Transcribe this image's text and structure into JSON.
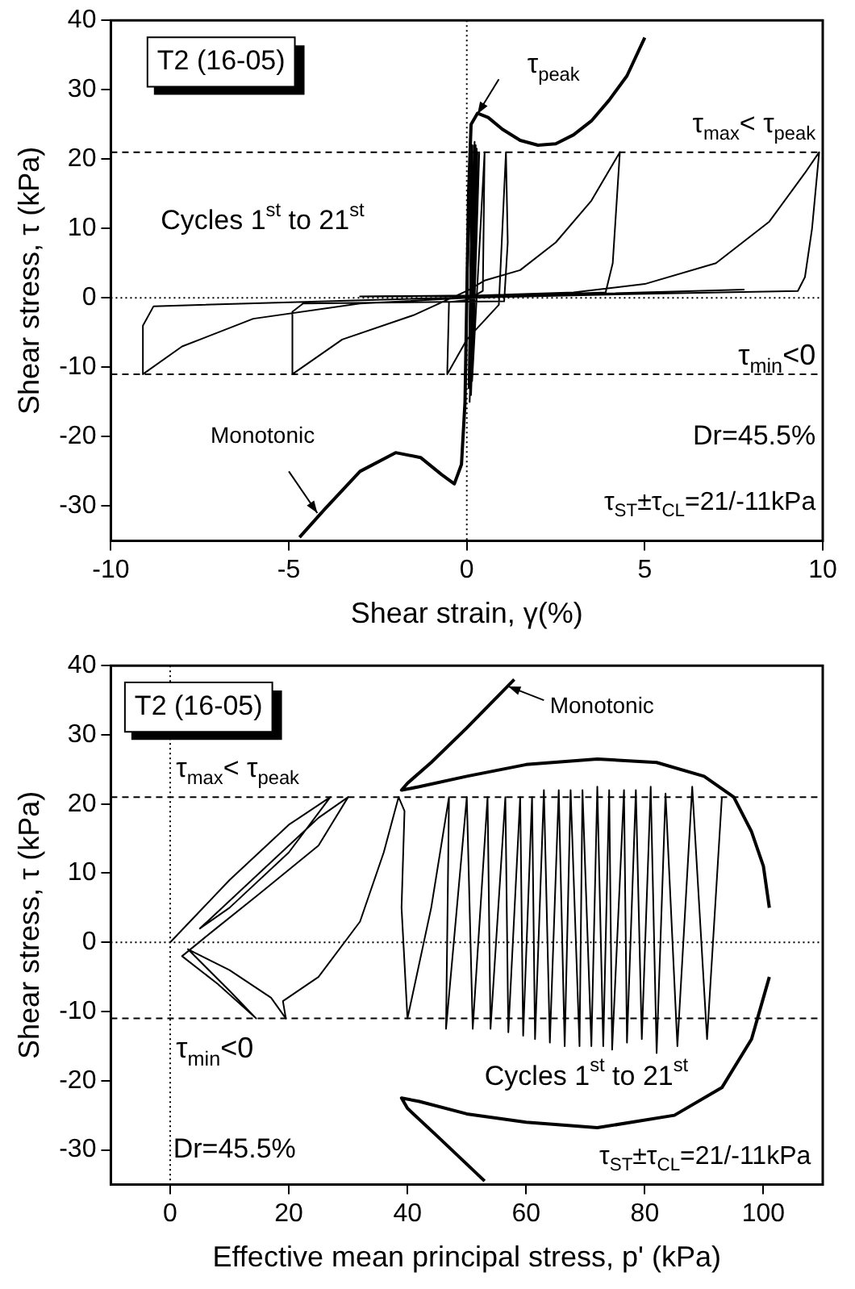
{
  "chart_data": [
    {
      "type": "line",
      "xlabel": "Shear strain, γ(%)",
      "ylabel": "Shear stress, τ (kPa)",
      "xlim": [
        -10,
        10
      ],
      "xticks": [
        -10,
        -5,
        0,
        5,
        10
      ],
      "ylim": [
        -35,
        40
      ],
      "yticks": [
        -30,
        -20,
        -10,
        0,
        10,
        20,
        30,
        40
      ],
      "ref_lines": [
        {
          "axis": "y",
          "value": 21,
          "line_style": "dashed"
        },
        {
          "axis": "y",
          "value": -11,
          "line_style": "dashed"
        },
        {
          "axis": "y",
          "value": 0,
          "line_style": "dotted"
        },
        {
          "axis": "x",
          "value": 0,
          "line_style": "dotted"
        }
      ],
      "series": [
        {
          "color": "#000000",
          "x": [
            -4.7,
            -4,
            -3,
            -2,
            -1.3,
            -0.7,
            -0.35,
            -0.15,
            -0.05,
            0,
            0.05,
            0.12,
            0.3,
            0.6,
            1,
            1.5,
            2,
            2.5,
            3,
            3.5,
            4,
            4.5,
            5
          ],
          "values": [
            -34.5,
            -30.5,
            -25,
            -22.3,
            -23,
            -25.5,
            -26.8,
            -24,
            -15,
            0,
            15,
            25,
            26.6,
            26,
            24.3,
            22.7,
            22,
            22.2,
            23.5,
            25.5,
            28.5,
            32,
            37.5
          ]
        },
        {
          "color": "#000000",
          "x": [
            0,
            0.15,
            0.05,
            0.2,
            0.05,
            0.22,
            0.08,
            0.25,
            0.1,
            0.28,
            0.08,
            0.3,
            0.12,
            0.35,
            0.15,
            0.5,
            0.45,
            0,
            -0.5,
            -0.55,
            0,
            0.9,
            1.1,
            1.15,
            1.05,
            -4.6,
            -4.9,
            -4.9,
            -3.5,
            -1.5,
            0,
            0.5,
            1.5,
            2.5,
            3.5,
            4.3,
            4.1,
            3.9,
            0,
            -8.8,
            -9.1,
            -9.1,
            -8,
            -6,
            -3,
            0,
            5,
            9.3,
            9.5,
            9.7,
            9.9,
            9.5,
            8.5,
            7,
            5,
            3,
            0,
            -3,
            3,
            7.8
          ],
          "values": [
            0,
            22,
            -12,
            22,
            -13,
            22.5,
            -13,
            22,
            -14,
            21.5,
            -15,
            21,
            -14,
            21,
            -12,
            21,
            1,
            -0.3,
            -0.6,
            -11,
            -6,
            -1,
            21,
            8,
            -0.5,
            -0.8,
            -2,
            -11,
            -6,
            -2.5,
            1,
            2.5,
            4,
            8,
            14,
            21,
            5,
            0.8,
            0.1,
            -1.2,
            -4,
            -11,
            -7,
            -3,
            -0.8,
            0,
            0.6,
            1,
            3,
            10,
            21,
            18,
            11,
            5,
            2,
            0.8,
            0.3,
            0.2,
            0.5,
            1.2
          ]
        }
      ],
      "annotations": [
        "T2 (16-05)",
        {
          "text": "τ$_{peak}$",
          "x": 0.3,
          "y": 26.5
        },
        "τ$_{max}$< τ$_{peak}$",
        "Cycles 1$^{st}$ to 21$^{st}$",
        "τ$_{min}$<0",
        {
          "text": "Monotonic",
          "x": -4.2,
          "y": -31
        },
        "Dr=45.5%",
        "τ$_{ST}$±τ$_{CL}$=21/-11kPa"
      ]
    },
    {
      "type": "line",
      "xlabel": "Effective mean principal stress, p' (kPa)",
      "ylabel": "Shear stress, τ (kPa)",
      "xlim": [
        -10,
        110
      ],
      "xticks": [
        0,
        20,
        40,
        60,
        80,
        100
      ],
      "ylim": [
        -35,
        40
      ],
      "yticks": [
        -30,
        -20,
        -10,
        0,
        10,
        20,
        30,
        40
      ],
      "ref_lines": [
        {
          "axis": "y",
          "value": 21,
          "line_style": "dashed"
        },
        {
          "axis": "y",
          "value": -11,
          "line_style": "dashed"
        },
        {
          "axis": "y",
          "value": 0,
          "line_style": "dotted"
        },
        {
          "axis": "x",
          "value": 0,
          "line_style": "dotted"
        }
      ],
      "series": [
        {
          "color": "#000000",
          "x": [
            58,
            50,
            44,
            40,
            39,
            42,
            50,
            60,
            72,
            82,
            90,
            95,
            98,
            100,
            101
          ],
          "values": [
            38,
            31,
            26,
            23,
            22,
            22.5,
            24,
            25.7,
            26.5,
            26,
            24,
            21,
            16,
            11,
            5
          ]
        },
        {
          "color": "#000000",
          "x": [
            53,
            45,
            40,
            39,
            42,
            50,
            60,
            72,
            85,
            93,
            98,
            101
          ],
          "values": [
            -34.5,
            -28,
            -24,
            -22.5,
            -23,
            -24.8,
            -26,
            -26.8,
            -25,
            -21,
            -14,
            -5
          ]
        },
        {
          "color": "#000000",
          "x": [
            0,
            10,
            20,
            27,
            20,
            10,
            5,
            15,
            25,
            30,
            25,
            15,
            7,
            2,
            8,
            14.5,
            10,
            3,
            10,
            17,
            19.5,
            19,
            25,
            32,
            36,
            38.5,
            39.5,
            39,
            40,
            44,
            47,
            46.5,
            50,
            51,
            53.5,
            54,
            56.5,
            57,
            59,
            59.5,
            61,
            61.5,
            63,
            64,
            65.5,
            66.5,
            67.5,
            69,
            69.5,
            71,
            72,
            73,
            74,
            74.5,
            76.5,
            77,
            78.5,
            79.5,
            81,
            82,
            83.5,
            85.5,
            88,
            90.5,
            93
          ],
          "values": [
            0,
            9,
            17,
            21,
            13,
            5,
            2,
            10,
            18,
            21,
            14,
            7,
            1.5,
            -2,
            -6,
            -11,
            -7,
            -1,
            -4,
            -8,
            -11,
            -8.5,
            -5,
            3,
            13,
            21,
            19,
            5,
            -11,
            5,
            21,
            -12.5,
            21,
            -12.5,
            21,
            -12.5,
            21,
            -13,
            21,
            -13.5,
            21,
            -14,
            22,
            -14.5,
            22,
            -15,
            22,
            -15,
            22,
            -15,
            22.5,
            -15,
            22,
            -15.5,
            22,
            -14.5,
            22,
            -14,
            22.5,
            -16,
            21.5,
            -15,
            22.5,
            -14,
            21
          ]
        }
      ],
      "annotations": [
        "T2 (16-05)",
        "τ$_{max}$< τ$_{peak}$",
        "τ$_{min}$<0",
        "Cycles 1$^{st}$ to 21$^{st}$",
        "Dr=45.5%",
        "τ$_{ST}$±τ$_{CL}$=21/-11kPa",
        {
          "text": "Monotonic",
          "x": 57,
          "y": 37
        }
      ]
    }
  ]
}
